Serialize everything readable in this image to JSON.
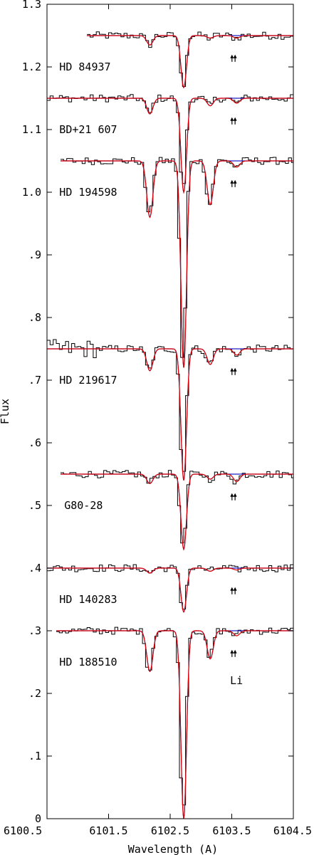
{
  "chart_data": {
    "type": "line",
    "xlabel": "Wavelength (A)",
    "ylabel": "Flux",
    "xlim": [
      6100.5,
      6104.5
    ],
    "ylim": [
      0,
      1.3
    ],
    "x_ticks": [
      6100.5,
      6101.5,
      6102.5,
      6103.5,
      6104.5
    ],
    "x_tick_labels": [
      "6100.5",
      "6101.5",
      "6102.5",
      "6103.5",
      "6104.5"
    ],
    "y_ticks": [
      0,
      0.1,
      0.2,
      0.3,
      0.4,
      0.5,
      0.6,
      0.7,
      0.8,
      0.9,
      1.0,
      1.1,
      1.2,
      1.3
    ],
    "y_tick_labels": [
      "0",
      ".1",
      ".2",
      ".3",
      ".4",
      ".5",
      ".6",
      ".7",
      ".8",
      ".9",
      "1.0",
      "1.1",
      "1.2",
      "1.3"
    ],
    "grid": false,
    "colors": {
      "observed": "#000000",
      "model_li": "#e00000",
      "model_noli": "#2020c0"
    },
    "li_marker_x": [
      6103.55,
      6103.6
    ],
    "li_label": "Li",
    "spectra": [
      {
        "name": "HD 84937",
        "continuum": 1.25,
        "x_start": 6101.15,
        "x_end": 6104.5,
        "label_x": 6100.7,
        "lines": [
          {
            "x": 6102.17,
            "d": 0.015
          },
          {
            "x": 6102.72,
            "d": 0.083
          },
          {
            "x": 6103.15,
            "d": 0.004
          },
          {
            "x": 6103.58,
            "d": 0.004
          }
        ]
      },
      {
        "name": "BD+21 607",
        "continuum": 1.15,
        "x_start": 6100.5,
        "x_end": 6104.5,
        "label_x": 6100.7,
        "lines": [
          {
            "x": 6102.17,
            "d": 0.025
          },
          {
            "x": 6102.72,
            "d": 0.15
          },
          {
            "x": 6103.15,
            "d": 0.012
          },
          {
            "x": 6103.58,
            "d": 0.008
          }
        ]
      },
      {
        "name": "HD 194598",
        "continuum": 1.05,
        "x_start": 6100.72,
        "x_end": 6104.5,
        "label_x": 6100.7,
        "lines": [
          {
            "x": 6102.17,
            "d": 0.09
          },
          {
            "x": 6102.72,
            "d": 0.33
          },
          {
            "x": 6103.15,
            "d": 0.07
          },
          {
            "x": 6103.58,
            "d": 0.01
          }
        ]
      },
      {
        "name": "HD 219617",
        "continuum": 0.75,
        "x_start": 6100.5,
        "x_end": 6104.5,
        "label_x": 6100.7,
        "lines": [
          {
            "x": 6102.17,
            "d": 0.035
          },
          {
            "x": 6102.72,
            "d": 0.21
          },
          {
            "x": 6103.15,
            "d": 0.025
          },
          {
            "x": 6103.58,
            "d": 0.01
          }
        ]
      },
      {
        "name": "G80-28",
        "continuum": 0.55,
        "x_start": 6100.72,
        "x_end": 6104.5,
        "label_x": 6100.78,
        "lines": [
          {
            "x": 6102.17,
            "d": 0.015
          },
          {
            "x": 6102.72,
            "d": 0.12
          },
          {
            "x": 6103.15,
            "d": 0.008
          },
          {
            "x": 6103.58,
            "d": 0.012
          }
        ]
      },
      {
        "name": "HD 140283",
        "continuum": 0.4,
        "x_start": 6100.5,
        "x_end": 6104.5,
        "label_x": 6100.7,
        "lines": [
          {
            "x": 6102.17,
            "d": 0.008
          },
          {
            "x": 6102.72,
            "d": 0.07
          },
          {
            "x": 6103.15,
            "d": 0.005
          },
          {
            "x": 6103.58,
            "d": 0.003
          }
        ]
      },
      {
        "name": "HD 188510",
        "continuum": 0.3,
        "x_start": 6100.65,
        "x_end": 6104.5,
        "label_x": 6100.7,
        "lines": [
          {
            "x": 6102.17,
            "d": 0.065
          },
          {
            "x": 6102.72,
            "d": 0.3
          },
          {
            "x": 6103.15,
            "d": 0.045
          },
          {
            "x": 6103.58,
            "d": 0.008
          }
        ]
      }
    ]
  }
}
